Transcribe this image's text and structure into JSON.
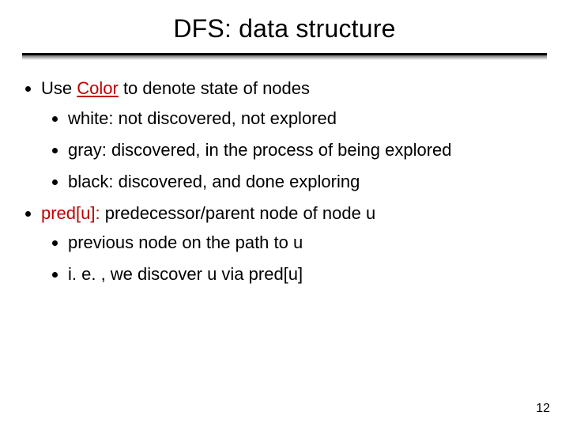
{
  "title": "DFS: data structure",
  "bullets": [
    {
      "prefix": "Use ",
      "emph": "Color",
      "suffix": " to denote state of nodes",
      "emph_class": "red-underline",
      "sub": [
        "white: not discovered, not explored",
        "gray: discovered, in the process of being explored",
        "black: discovered, and done exploring"
      ]
    },
    {
      "prefix": "",
      "emph": "pred[u]:",
      "suffix": " predecessor/parent node of node u",
      "emph_class": "red",
      "sub": [
        "previous node on the path to u",
        "i. e. , we discover u via pred[u]"
      ]
    }
  ],
  "page_number": "12",
  "colors": {
    "emphasis": "#c00000",
    "text": "#000000",
    "background": "#ffffff"
  },
  "typography": {
    "title_fontsize": 32,
    "body_fontsize": 22,
    "pagenum_fontsize": 16,
    "font_family": "Arial"
  }
}
